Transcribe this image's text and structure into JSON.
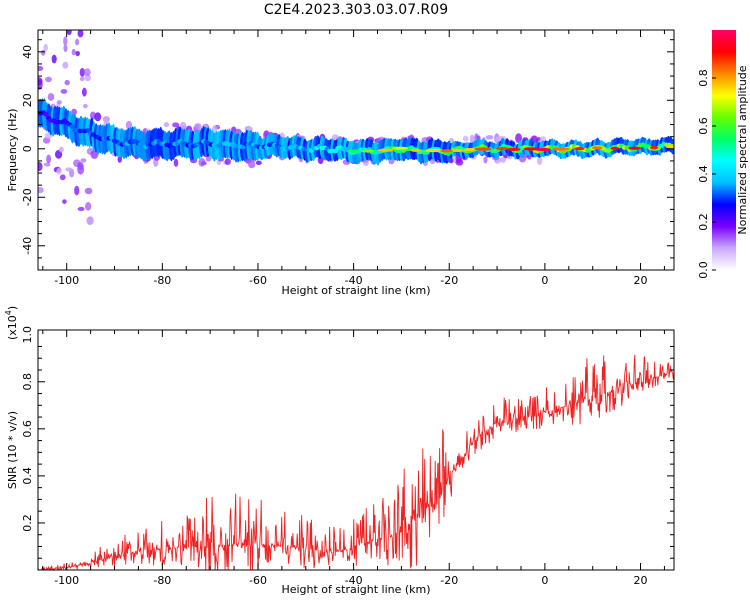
{
  "title": "C2E4.2023.303.03.07.R09",
  "chart_data": [
    {
      "type": "heatmap",
      "xlabel": "Height of straight line (km)",
      "ylabel": "Frequency (Hz)",
      "xlim": [
        -106,
        27
      ],
      "ylim": [
        -50,
        49
      ],
      "xticks": [
        -100,
        -80,
        -60,
        -40,
        -20,
        0,
        20
      ],
      "yticks": [
        -40,
        -20,
        0,
        20,
        40
      ],
      "colorbar": {
        "label": "Normalized spectral amplitude",
        "range": [
          0,
          1
        ],
        "ticks": [
          "0.0",
          "0.2",
          "0.4",
          "0.6",
          "0.8"
        ],
        "colormap": [
          "#ffffff",
          "#c9a9ff",
          "#7a00ff",
          "#0000ff",
          "#00bfff",
          "#00ffff",
          "#00ff66",
          "#66ff00",
          "#ffff00",
          "#ff8800",
          "#ff0000",
          "#ff0066"
        ]
      },
      "ridge": {
        "x": [
          -105,
          -100,
          -95,
          -90,
          -85,
          -80,
          -75,
          -70,
          -65,
          -60,
          -55,
          -50,
          -45,
          -40,
          -35,
          -30,
          -25,
          -20,
          -15,
          -10,
          -5,
          0,
          5,
          10,
          15,
          20,
          25,
          27
        ],
        "freq": [
          14,
          10,
          6,
          3,
          2,
          2,
          2,
          2,
          1.5,
          1,
          1,
          0,
          0,
          -1,
          -1,
          0,
          -1,
          -1,
          0,
          0,
          0,
          0,
          0,
          0,
          0.5,
          0.5,
          1,
          1
        ],
        "amplitude": [
          0.35,
          0.4,
          0.42,
          0.45,
          0.45,
          0.45,
          0.45,
          0.47,
          0.5,
          0.5,
          0.5,
          0.55,
          0.6,
          0.62,
          0.7,
          0.72,
          0.75,
          0.78,
          0.82,
          0.85,
          0.88,
          0.9,
          0.9,
          0.88,
          0.9,
          0.88,
          0.85,
          0.82
        ]
      }
    },
    {
      "type": "line",
      "xlabel": "Height of straight line (km)",
      "ylabel": "SNR (10 * v/v)",
      "scale_label": "(x10",
      "scale_exp": "4",
      "scale_close": ")",
      "xlim": [
        -106,
        27
      ],
      "ylim": [
        0,
        1.02
      ],
      "xticks": [
        -100,
        -80,
        -60,
        -40,
        -20,
        0,
        20
      ],
      "yticks": [
        "0.2",
        "0.4",
        "0.6",
        "0.8",
        "1.0"
      ],
      "series": [
        {
          "color": "#ee2222",
          "envelope": {
            "x": [
              -106,
              -100,
              -95,
              -90,
              -85,
              -80,
              -75,
              -70,
              -65,
              -60,
              -55,
              -50,
              -45,
              -42,
              -40,
              -35,
              -30,
              -28,
              -25,
              -22,
              -20,
              -18,
              -15,
              -12,
              -10,
              -5,
              0,
              5,
              10,
              15,
              20,
              25,
              27
            ],
            "base": [
              0.0,
              0.01,
              0.03,
              0.06,
              0.08,
              0.09,
              0.1,
              0.1,
              0.11,
              0.11,
              0.1,
              0.09,
              0.08,
              0.08,
              0.1,
              0.13,
              0.16,
              0.2,
              0.25,
              0.3,
              0.4,
              0.45,
              0.55,
              0.6,
              0.63,
              0.64,
              0.67,
              0.7,
              0.73,
              0.77,
              0.8,
              0.83,
              0.84
            ],
            "amplitude": [
              0.01,
              0.02,
              0.04,
              0.08,
              0.1,
              0.12,
              0.14,
              0.22,
              0.24,
              0.22,
              0.16,
              0.14,
              0.12,
              0.1,
              0.14,
              0.18,
              0.24,
              0.36,
              0.3,
              0.34,
              0.2,
              0.1,
              0.12,
              0.12,
              0.1,
              0.1,
              0.12,
              0.14,
              0.2,
              0.15,
              0.12,
              0.06,
              0.05
            ]
          }
        }
      ]
    }
  ]
}
